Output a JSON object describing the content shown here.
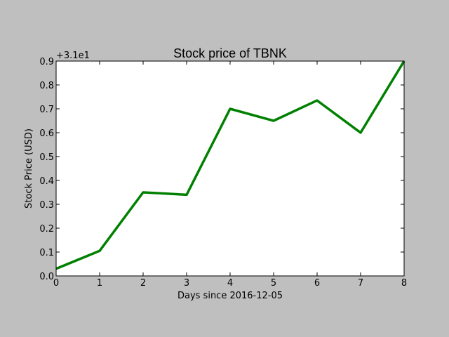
{
  "chart_data": {
    "type": "line",
    "title": "Stock price of TBNK",
    "xlabel": "Days since 2016-12-05",
    "ylabel": "Stock Price (USD)",
    "offset_label": "+3.1e1",
    "x": [
      0,
      1,
      2,
      3,
      4,
      5,
      6,
      7,
      8
    ],
    "xlim": [
      0,
      8
    ],
    "ylim": [
      31.0,
      31.9
    ],
    "xticks": [
      "0",
      "1",
      "2",
      "3",
      "4",
      "5",
      "6",
      "7",
      "8"
    ],
    "yticks": [
      "0.0",
      "0.1",
      "0.2",
      "0.3",
      "0.4",
      "0.5",
      "0.6",
      "0.7",
      "0.8",
      "0.9"
    ],
    "grid": false,
    "series": [
      {
        "values": [
          31.03,
          31.105,
          31.35,
          31.34,
          31.7,
          31.65,
          31.735,
          31.6,
          31.9
        ],
        "color": "#008000"
      }
    ],
    "colors": {
      "figure_bg": "#bfbfbf",
      "axes_bg": "#ffffff",
      "line": "#008000",
      "text": "#000000"
    }
  }
}
